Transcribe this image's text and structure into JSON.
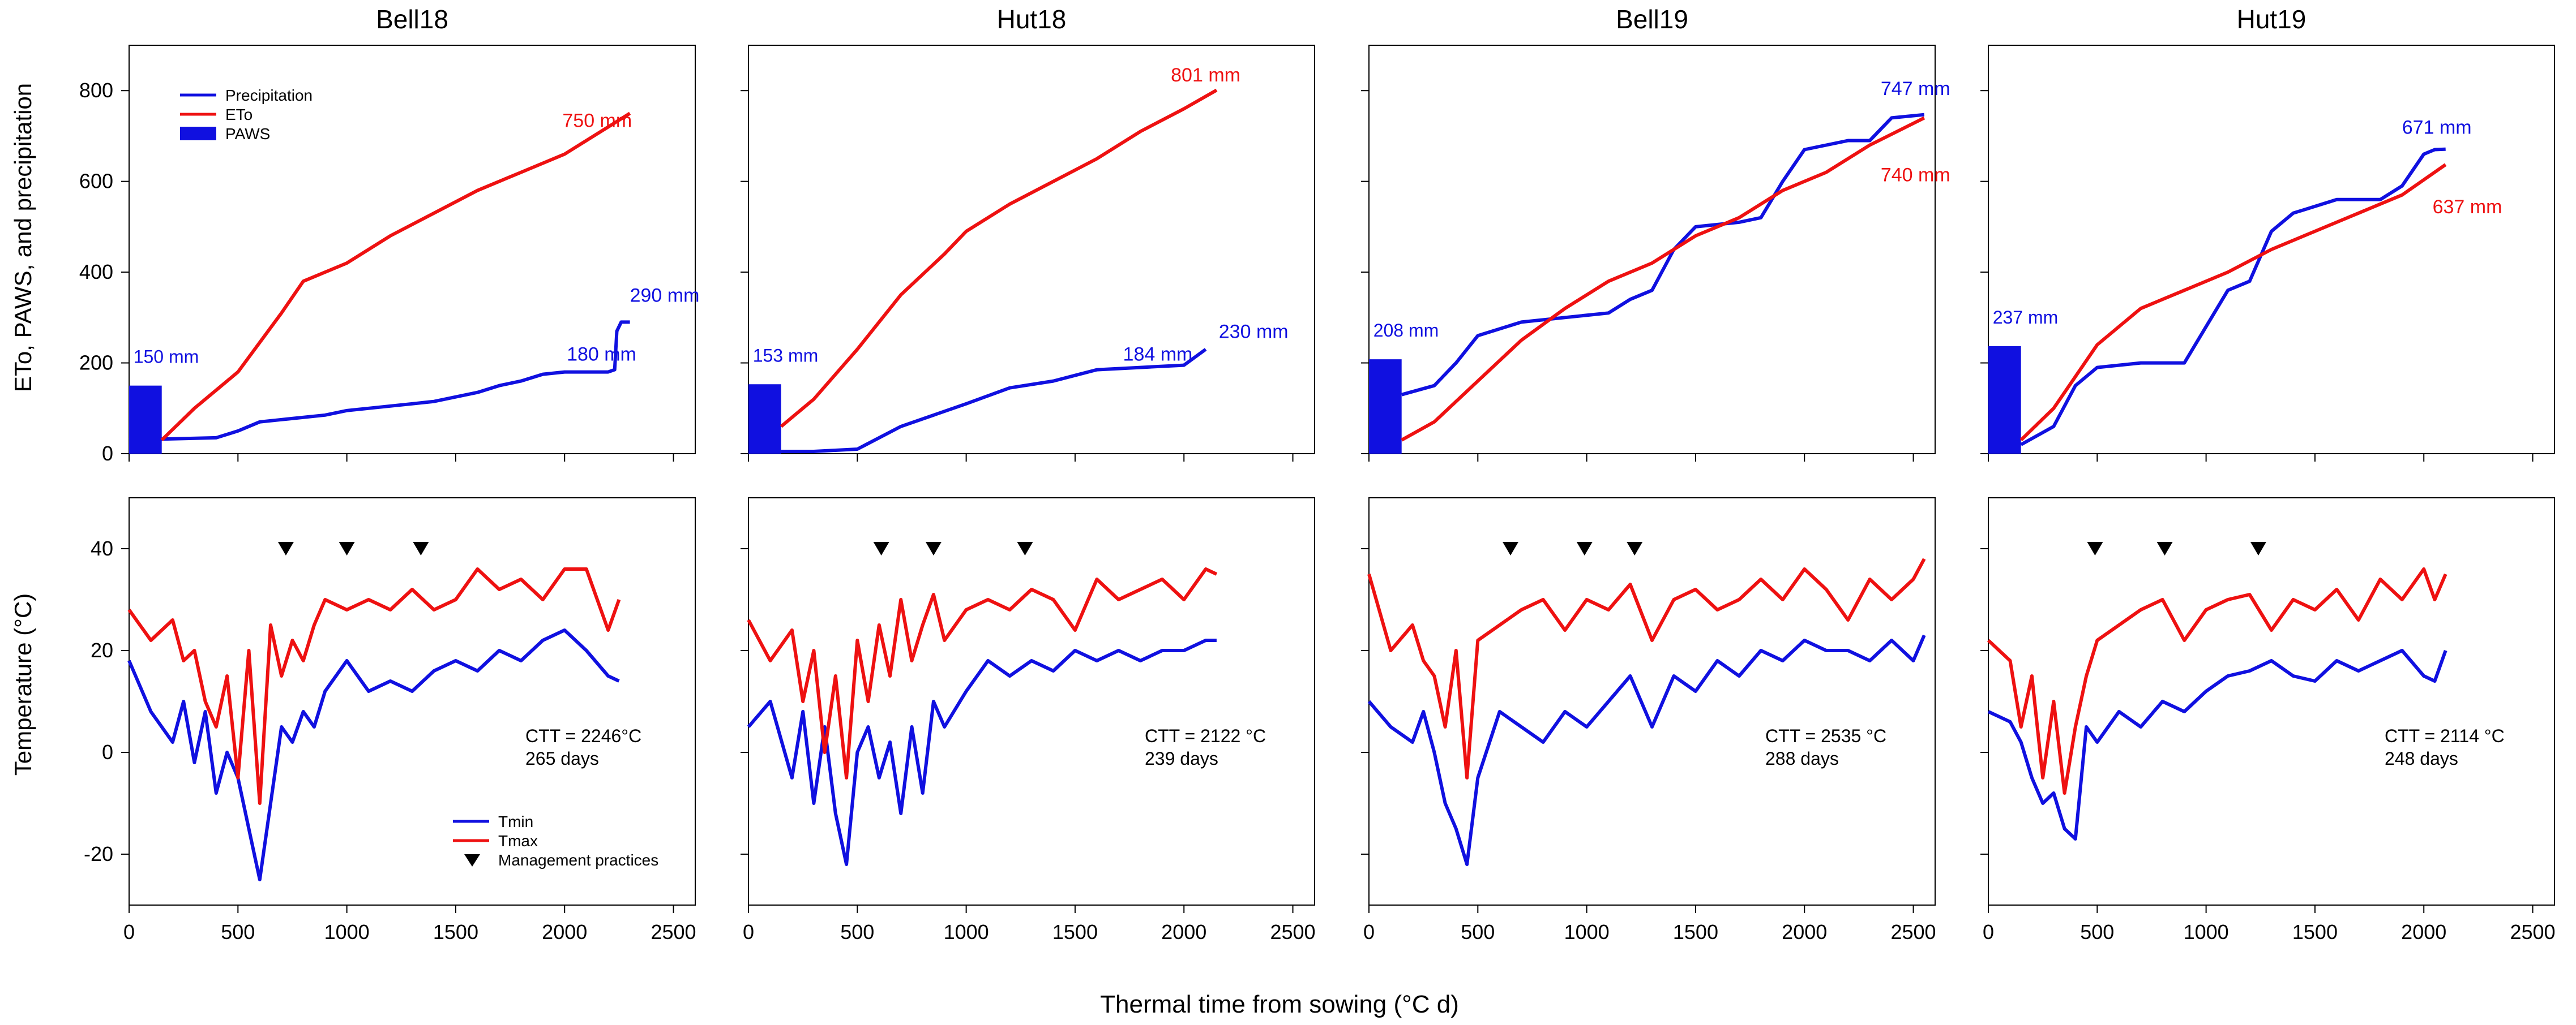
{
  "figure": {
    "ylabel_top": "ETo, PAWS, and precipitation",
    "ylabel_bottom": "Temperature (°C)",
    "xlabel": "Thermal time from sowing (°C d)"
  },
  "legends": {
    "top": [
      "Precipitation",
      "ETo",
      "PAWS"
    ],
    "bottom": [
      "Tmin",
      "Tmax",
      "Management practices"
    ]
  },
  "colors": {
    "precip": "#1010e0",
    "eto": "#ee1111",
    "paws": "#1010e0",
    "tmin": "#1010e0",
    "tmax": "#ee1111",
    "marker": "#000000"
  },
  "chart_data": [
    {
      "type": "line",
      "panel": "top",
      "site": "Bell18",
      "title": "Bell18",
      "xlim": [
        0,
        2600
      ],
      "ylim": [
        0,
        900
      ],
      "xticks": [
        0,
        500,
        1000,
        1500,
        2000,
        2500
      ],
      "yticks": [
        0,
        200,
        400,
        600,
        800
      ],
      "paws": 150,
      "paws_label": "150 mm",
      "series": [
        {
          "name": "Precipitation",
          "x": [
            0,
            150,
            400,
            500,
            600,
            700,
            900,
            1000,
            1100,
            1200,
            1300,
            1400,
            1500,
            1600,
            1700,
            1800,
            1900,
            2000,
            2100,
            2200,
            2230,
            2240,
            2260,
            2300
          ],
          "y": [
            30,
            32,
            35,
            50,
            70,
            75,
            85,
            95,
            100,
            105,
            110,
            115,
            125,
            135,
            150,
            160,
            175,
            180,
            180,
            180,
            185,
            270,
            290,
            290
          ]
        },
        {
          "name": "ETo",
          "x": [
            150,
            300,
            500,
            700,
            800,
            900,
            1000,
            1200,
            1400,
            1600,
            1800,
            2000,
            2200,
            2300
          ],
          "y": [
            30,
            100,
            180,
            310,
            380,
            400,
            420,
            480,
            530,
            580,
            620,
            660,
            720,
            750
          ]
        }
      ],
      "labels": [
        {
          "text": "750 mm",
          "series": "ETo"
        },
        {
          "text": "180 mm",
          "series": "Precipitation"
        },
        {
          "text": "290 mm",
          "series": "Precipitation"
        }
      ]
    },
    {
      "type": "line",
      "panel": "top",
      "site": "Hut18",
      "title": "Hut18",
      "xlim": [
        0,
        2600
      ],
      "ylim": [
        0,
        900
      ],
      "xticks": [
        0,
        500,
        1000,
        1500,
        2000,
        2500
      ],
      "yticks": [
        0,
        200,
        400,
        600,
        800
      ],
      "paws": 153,
      "paws_label": "153 mm",
      "series": [
        {
          "name": "Precipitation",
          "x": [
            150,
            300,
            500,
            700,
            1000,
            1200,
            1400,
            1600,
            1800,
            2000,
            2100
          ],
          "y": [
            5,
            5,
            10,
            60,
            110,
            145,
            160,
            185,
            190,
            195,
            230
          ]
        },
        {
          "name": "ETo",
          "x": [
            150,
            300,
            500,
            700,
            900,
            1000,
            1200,
            1400,
            1600,
            1800,
            2000,
            2150
          ],
          "y": [
            60,
            120,
            230,
            350,
            440,
            490,
            550,
            600,
            650,
            710,
            760,
            801
          ]
        }
      ],
      "labels": [
        {
          "text": "801 mm",
          "series": "ETo"
        },
        {
          "text": "184 mm",
          "series": "Precipitation"
        },
        {
          "text": "230 mm",
          "series": "Precipitation"
        }
      ]
    },
    {
      "type": "line",
      "panel": "top",
      "site": "Bell19",
      "title": "Bell19",
      "xlim": [
        0,
        2600
      ],
      "ylim": [
        0,
        900
      ],
      "xticks": [
        0,
        500,
        1000,
        1500,
        2000,
        2500
      ],
      "yticks": [
        0,
        200,
        400,
        600,
        800
      ],
      "paws": 208,
      "paws_label": "208 mm",
      "series": [
        {
          "name": "Precipitation",
          "x": [
            150,
            300,
            400,
            500,
            700,
            900,
            1100,
            1200,
            1300,
            1400,
            1500,
            1700,
            1800,
            1900,
            2000,
            2100,
            2200,
            2300,
            2400,
            2550
          ],
          "y": [
            130,
            150,
            200,
            260,
            290,
            300,
            310,
            340,
            360,
            450,
            500,
            510,
            520,
            600,
            670,
            680,
            690,
            690,
            740,
            747
          ]
        },
        {
          "name": "ETo",
          "x": [
            150,
            300,
            500,
            700,
            900,
            1100,
            1300,
            1500,
            1700,
            1900,
            2100,
            2300,
            2550
          ],
          "y": [
            30,
            70,
            160,
            250,
            320,
            380,
            420,
            480,
            520,
            580,
            620,
            680,
            740
          ]
        }
      ],
      "labels": [
        {
          "text": "747 mm",
          "series": "Precipitation"
        },
        {
          "text": "740 mm",
          "series": "ETo"
        }
      ]
    },
    {
      "type": "line",
      "panel": "top",
      "site": "Hut19",
      "title": "Hut19",
      "xlim": [
        0,
        2600
      ],
      "ylim": [
        0,
        900
      ],
      "xticks": [
        0,
        500,
        1000,
        1500,
        2000,
        2500
      ],
      "yticks": [
        0,
        200,
        400,
        600,
        800
      ],
      "paws": 237,
      "paws_label": "237 mm",
      "series": [
        {
          "name": "Precipitation",
          "x": [
            150,
            300,
            400,
            500,
            700,
            900,
            1000,
            1100,
            1200,
            1300,
            1400,
            1600,
            1800,
            1900,
            2000,
            2050,
            2100
          ],
          "y": [
            20,
            60,
            150,
            190,
            200,
            200,
            280,
            360,
            380,
            490,
            530,
            560,
            560,
            590,
            660,
            670,
            671
          ]
        },
        {
          "name": "ETo",
          "x": [
            150,
            300,
            500,
            700,
            900,
            1100,
            1300,
            1500,
            1700,
            1900,
            2100
          ],
          "y": [
            30,
            100,
            240,
            320,
            360,
            400,
            450,
            490,
            530,
            570,
            637
          ]
        }
      ],
      "labels": [
        {
          "text": "671 mm",
          "series": "Precipitation"
        },
        {
          "text": "637 mm",
          "series": "ETo"
        }
      ]
    },
    {
      "type": "line",
      "panel": "bottom",
      "site": "Bell18",
      "xlim": [
        0,
        2600
      ],
      "ylim": [
        -30,
        50
      ],
      "xticks": [
        0,
        500,
        1000,
        1500,
        2000,
        2500
      ],
      "yticks": [
        -20,
        0,
        20,
        40
      ],
      "ctt": "CTT = 2246°C",
      "days": "265 days",
      "management_x": [
        720,
        1000,
        1340
      ],
      "series": [
        {
          "name": "Tmin",
          "x": [
            0,
            100,
            200,
            250,
            300,
            350,
            400,
            450,
            500,
            550,
            600,
            650,
            700,
            750,
            800,
            850,
            900,
            1000,
            1100,
            1200,
            1300,
            1400,
            1500,
            1600,
            1700,
            1800,
            1900,
            2000,
            2100,
            2200,
            2250
          ],
          "y": [
            18,
            8,
            2,
            10,
            -2,
            8,
            -8,
            0,
            -5,
            -15,
            -25,
            -10,
            5,
            2,
            8,
            5,
            12,
            18,
            12,
            14,
            12,
            16,
            18,
            16,
            20,
            18,
            22,
            24,
            20,
            15,
            14
          ]
        },
        {
          "name": "Tmax",
          "x": [
            0,
            100,
            200,
            250,
            300,
            350,
            400,
            450,
            500,
            550,
            600,
            650,
            700,
            750,
            800,
            850,
            900,
            1000,
            1100,
            1200,
            1300,
            1400,
            1500,
            1600,
            1700,
            1800,
            1900,
            2000,
            2100,
            2200,
            2250
          ],
          "y": [
            28,
            22,
            26,
            18,
            20,
            10,
            5,
            15,
            -5,
            20,
            -10,
            25,
            15,
            22,
            18,
            25,
            30,
            28,
            30,
            28,
            32,
            28,
            30,
            36,
            32,
            34,
            30,
            36,
            36,
            24,
            30
          ]
        }
      ]
    },
    {
      "type": "line",
      "panel": "bottom",
      "site": "Hut18",
      "xlim": [
        0,
        2600
      ],
      "ylim": [
        -30,
        50
      ],
      "xticks": [
        0,
        500,
        1000,
        1500,
        2000,
        2500
      ],
      "yticks": [
        -20,
        0,
        20,
        40
      ],
      "ctt": "CTT = 2122 °C",
      "days": "239 days",
      "management_x": [
        610,
        850,
        1270
      ],
      "series": [
        {
          "name": "Tmin",
          "x": [
            0,
            100,
            200,
            250,
            300,
            350,
            400,
            450,
            500,
            550,
            600,
            650,
            700,
            750,
            800,
            850,
            900,
            1000,
            1100,
            1200,
            1300,
            1400,
            1500,
            1600,
            1700,
            1800,
            1900,
            2000,
            2100,
            2150
          ],
          "y": [
            5,
            10,
            -5,
            8,
            -10,
            5,
            -12,
            -22,
            0,
            5,
            -5,
            2,
            -12,
            5,
            -8,
            10,
            5,
            12,
            18,
            15,
            18,
            16,
            20,
            18,
            20,
            18,
            20,
            20,
            22,
            22
          ]
        },
        {
          "name": "Tmax",
          "x": [
            0,
            100,
            200,
            250,
            300,
            350,
            400,
            450,
            500,
            550,
            600,
            650,
            700,
            750,
            800,
            850,
            900,
            1000,
            1100,
            1200,
            1300,
            1400,
            1500,
            1600,
            1700,
            1800,
            1900,
            2000,
            2100,
            2150
          ],
          "y": [
            26,
            18,
            24,
            10,
            20,
            0,
            15,
            -5,
            22,
            10,
            25,
            15,
            30,
            18,
            25,
            31,
            22,
            28,
            30,
            28,
            32,
            30,
            24,
            34,
            30,
            32,
            34,
            30,
            36,
            35
          ]
        }
      ]
    },
    {
      "type": "line",
      "panel": "bottom",
      "site": "Bell19",
      "xlim": [
        0,
        2600
      ],
      "ylim": [
        -30,
        50
      ],
      "xticks": [
        0,
        500,
        1000,
        1500,
        2000,
        2500
      ],
      "yticks": [
        -20,
        0,
        20,
        40
      ],
      "ctt": "CTT = 2535 °C",
      "days": "288 days",
      "management_x": [
        650,
        990,
        1220
      ],
      "series": [
        {
          "name": "Tmin",
          "x": [
            0,
            100,
            200,
            250,
            300,
            350,
            400,
            450,
            500,
            600,
            700,
            800,
            900,
            1000,
            1100,
            1200,
            1300,
            1400,
            1500,
            1600,
            1700,
            1800,
            1900,
            2000,
            2100,
            2200,
            2300,
            2400,
            2500,
            2550
          ],
          "y": [
            10,
            5,
            2,
            8,
            0,
            -10,
            -15,
            -22,
            -5,
            8,
            5,
            2,
            8,
            5,
            10,
            15,
            5,
            15,
            12,
            18,
            15,
            20,
            18,
            22,
            20,
            20,
            18,
            22,
            18,
            23
          ]
        },
        {
          "name": "Tmax",
          "x": [
            0,
            100,
            200,
            250,
            300,
            350,
            400,
            450,
            500,
            600,
            700,
            800,
            900,
            1000,
            1100,
            1200,
            1300,
            1400,
            1500,
            1600,
            1700,
            1800,
            1900,
            2000,
            2100,
            2200,
            2300,
            2400,
            2500,
            2550
          ],
          "y": [
            35,
            20,
            25,
            18,
            15,
            5,
            20,
            -5,
            22,
            25,
            28,
            30,
            24,
            30,
            28,
            33,
            22,
            30,
            32,
            28,
            30,
            34,
            30,
            36,
            32,
            26,
            34,
            30,
            34,
            38
          ]
        }
      ]
    },
    {
      "type": "line",
      "panel": "bottom",
      "site": "Hut19",
      "xlim": [
        0,
        2600
      ],
      "ylim": [
        -30,
        50
      ],
      "xticks": [
        0,
        500,
        1000,
        1500,
        2000,
        2500
      ],
      "yticks": [
        -20,
        0,
        20,
        40
      ],
      "ctt": "CTT = 2114 °C",
      "days": "248 days",
      "management_x": [
        490,
        810,
        1240
      ],
      "series": [
        {
          "name": "Tmin",
          "x": [
            0,
            100,
            150,
            200,
            250,
            300,
            350,
            400,
            450,
            500,
            600,
            700,
            800,
            900,
            1000,
            1100,
            1200,
            1300,
            1400,
            1500,
            1600,
            1700,
            1800,
            1900,
            2000,
            2050,
            2100
          ],
          "y": [
            8,
            6,
            2,
            -5,
            -10,
            -8,
            -15,
            -17,
            5,
            2,
            8,
            5,
            10,
            8,
            12,
            15,
            16,
            18,
            15,
            14,
            18,
            16,
            18,
            20,
            15,
            14,
            20
          ]
        },
        {
          "name": "Tmax",
          "x": [
            0,
            100,
            150,
            200,
            250,
            300,
            350,
            400,
            450,
            500,
            600,
            700,
            800,
            900,
            1000,
            1100,
            1200,
            1300,
            1400,
            1500,
            1600,
            1700,
            1800,
            1900,
            2000,
            2050,
            2100
          ],
          "y": [
            22,
            18,
            5,
            15,
            -5,
            10,
            -8,
            5,
            15,
            22,
            25,
            28,
            30,
            22,
            28,
            30,
            31,
            24,
            30,
            28,
            32,
            26,
            34,
            30,
            36,
            30,
            35
          ]
        }
      ]
    }
  ]
}
